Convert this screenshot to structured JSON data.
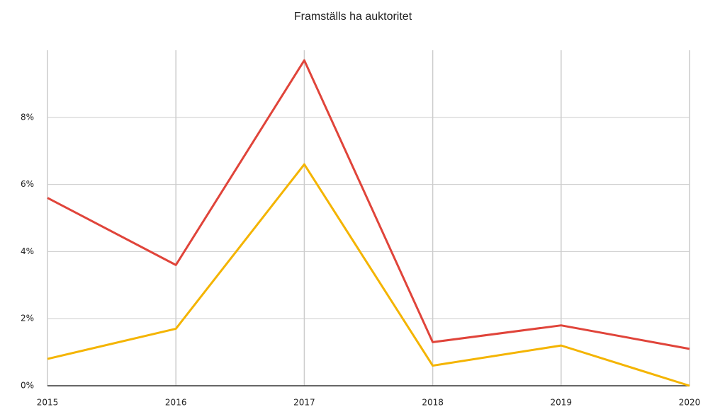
{
  "chart_data": {
    "type": "line",
    "title": "Framställs ha auktoritet",
    "x": [
      2015,
      2016,
      2017,
      2018,
      2019,
      2020
    ],
    "xlim": [
      2015,
      2020
    ],
    "xticks": [
      2015,
      2016,
      2017,
      2018,
      2019,
      2020
    ],
    "ylim": [
      0,
      10
    ],
    "yticks": [
      {
        "value": 0,
        "label": "0%"
      },
      {
        "value": 2,
        "label": "2%"
      },
      {
        "value": 4,
        "label": "4%"
      },
      {
        "value": 6,
        "label": "6%"
      },
      {
        "value": 8,
        "label": "8%"
      }
    ],
    "grid": true,
    "series": [
      {
        "color": "#e0443a",
        "values": [
          5.6,
          3.6,
          9.7,
          1.3,
          1.8,
          1.1
        ]
      },
      {
        "color": "#f4b400",
        "values": [
          0.8,
          1.7,
          6.6,
          0.6,
          1.2,
          0
        ]
      }
    ]
  }
}
